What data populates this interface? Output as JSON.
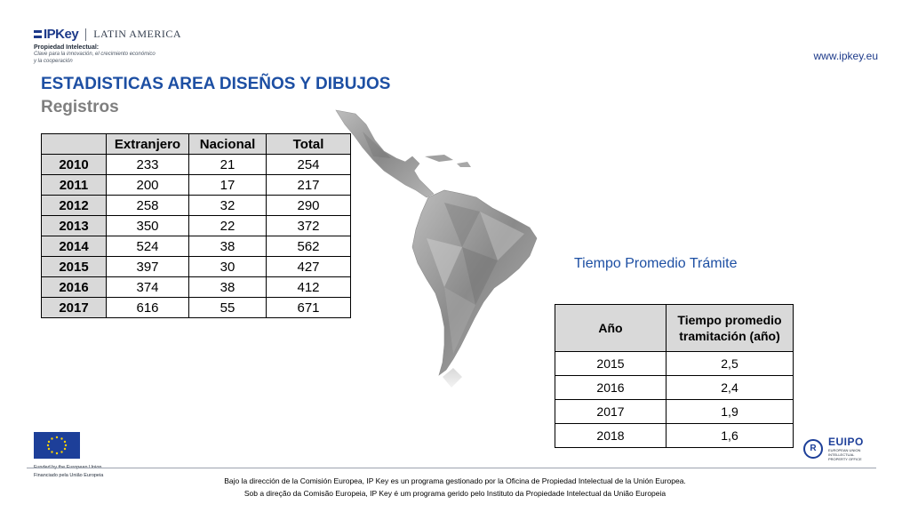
{
  "header": {
    "logo_text": "IPKey",
    "region": "LATIN AMERICA",
    "sub_line1": "Propiedad Intelectual:",
    "sub_line2": "Clave para la innovación, el crecimiento económico",
    "sub_line3": "y la cooperación",
    "website": "www.ipkey.eu"
  },
  "slide": {
    "title": "ESTADISTICAS AREA DISEÑOS Y DIBUJOS",
    "subtitle": "Registros"
  },
  "registros_table": {
    "columns": [
      "",
      "Extranjero",
      "Nacional",
      "Total"
    ],
    "rows": [
      [
        "2010",
        "233",
        "21",
        "254"
      ],
      [
        "2011",
        "200",
        "17",
        "217"
      ],
      [
        "2012",
        "258",
        "32",
        "290"
      ],
      [
        "2013",
        "350",
        "22",
        "372"
      ],
      [
        "2014",
        "524",
        "38",
        "562"
      ],
      [
        "2015",
        "397",
        "30",
        "427"
      ],
      [
        "2016",
        "374",
        "38",
        "412"
      ],
      [
        "2017",
        "616",
        "55",
        "671"
      ]
    ]
  },
  "tiempo_table": {
    "heading": "Tiempo Promedio Trámite",
    "col_year": "Año",
    "col_time_line1": "Tiempo promedio",
    "col_time_line2": "tramitación (año)",
    "rows": [
      [
        "2015",
        "2,5"
      ],
      [
        "2016",
        "2,4"
      ],
      [
        "2017",
        "1,9"
      ],
      [
        "2018",
        "1,6"
      ]
    ]
  },
  "eu_funding": {
    "line1": "Funded by the European Union",
    "line2": "Financiado pela União Europeia"
  },
  "euipo": {
    "name": "EUIPO",
    "small": "EUROPEAN UNION INTELLECTUAL PROPERTY OFFICE"
  },
  "footer": {
    "line1": "Bajo la dirección de la Comisión Europea, IP Key es un programa gestionado por la Oficina de Propiedad Intelectual de la Unión Europea.",
    "line2": "Sob a direção da Comisão Europeia, IP Key é um programa gerido pelo Instituto da Propiedade Intelectual da União Europeia"
  },
  "colors": {
    "title_blue": "#1d4fa3",
    "subtitle_gray": "#7f7f7f",
    "table_header_gray": "#d9d9d9"
  }
}
